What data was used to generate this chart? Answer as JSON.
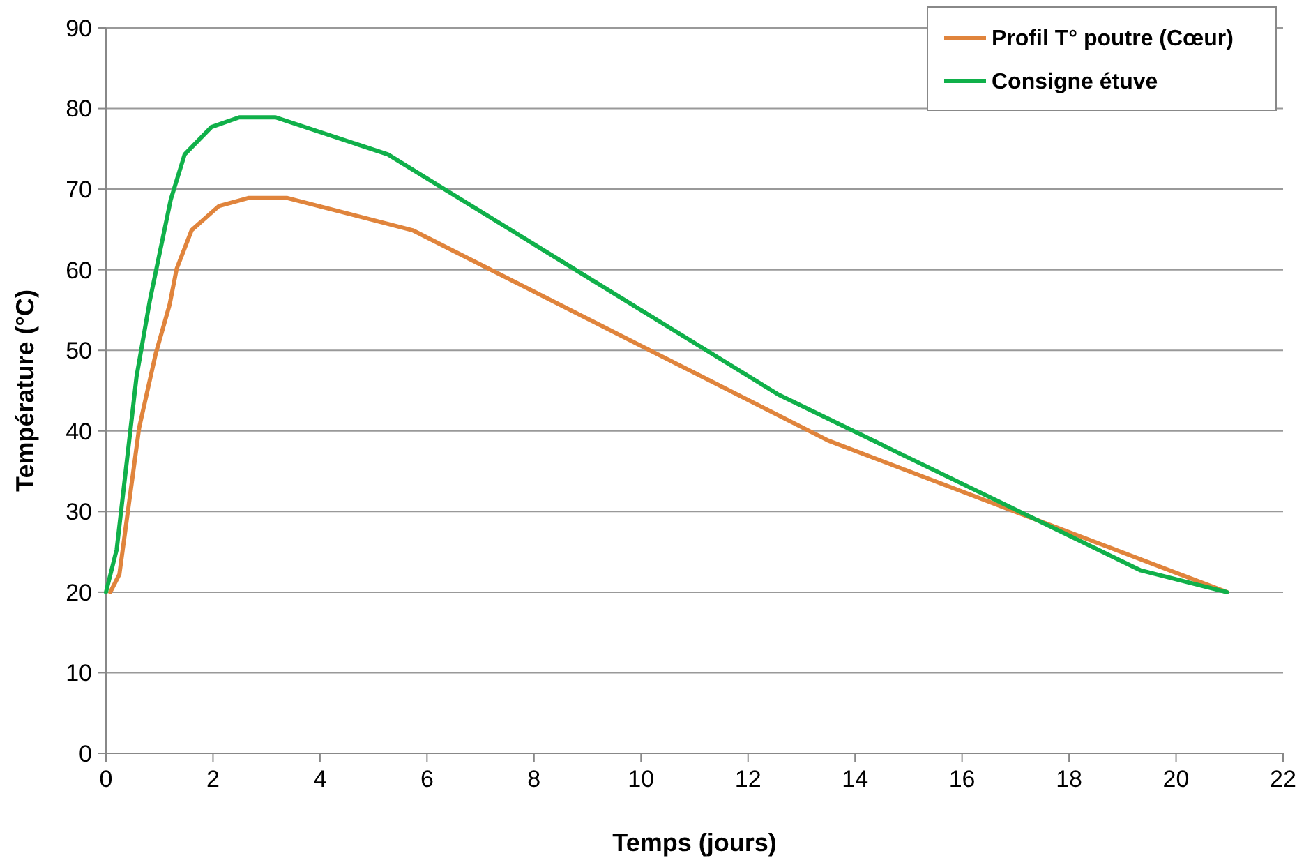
{
  "chart_data": {
    "type": "line",
    "xlabel": "Temps (jours)",
    "ylabel": "Température (°C)",
    "xlim": [
      0,
      22
    ],
    "xticks": [
      0,
      2,
      4,
      6,
      8,
      10,
      12,
      14,
      16,
      18,
      20,
      22
    ],
    "ylim": [
      0,
      90
    ],
    "yticks": [
      0,
      10,
      20,
      30,
      40,
      50,
      60,
      70,
      80,
      90
    ],
    "grid": "y",
    "legend": "top right",
    "marker": "none",
    "line_style": "solid",
    "series": [
      {
        "name": "Profil T° poutre (Cœur)",
        "color": "#e0843c",
        "x": [
          0.08,
          0.25,
          0.62,
          0.93,
          1.19,
          1.32,
          1.6,
          2.11,
          2.66,
          3.39,
          5.73,
          13.5,
          20.95
        ],
        "values": [
          20,
          22.2,
          40.4,
          49.6,
          55.7,
          60.1,
          64.9,
          67.9,
          68.9,
          68.9,
          64.9,
          38.8,
          20
        ]
      },
      {
        "name": "Consigne étuve",
        "color": "#10b04a",
        "x": [
          0,
          0.2,
          0.57,
          0.82,
          1.21,
          1.47,
          1.97,
          2.49,
          3.17,
          5.27,
          12.57,
          19.34,
          20.95
        ],
        "values": [
          20,
          25.3,
          46.7,
          56.2,
          68.7,
          74.3,
          77.7,
          78.9,
          78.9,
          74.3,
          44.5,
          22.7,
          20
        ]
      }
    ]
  }
}
